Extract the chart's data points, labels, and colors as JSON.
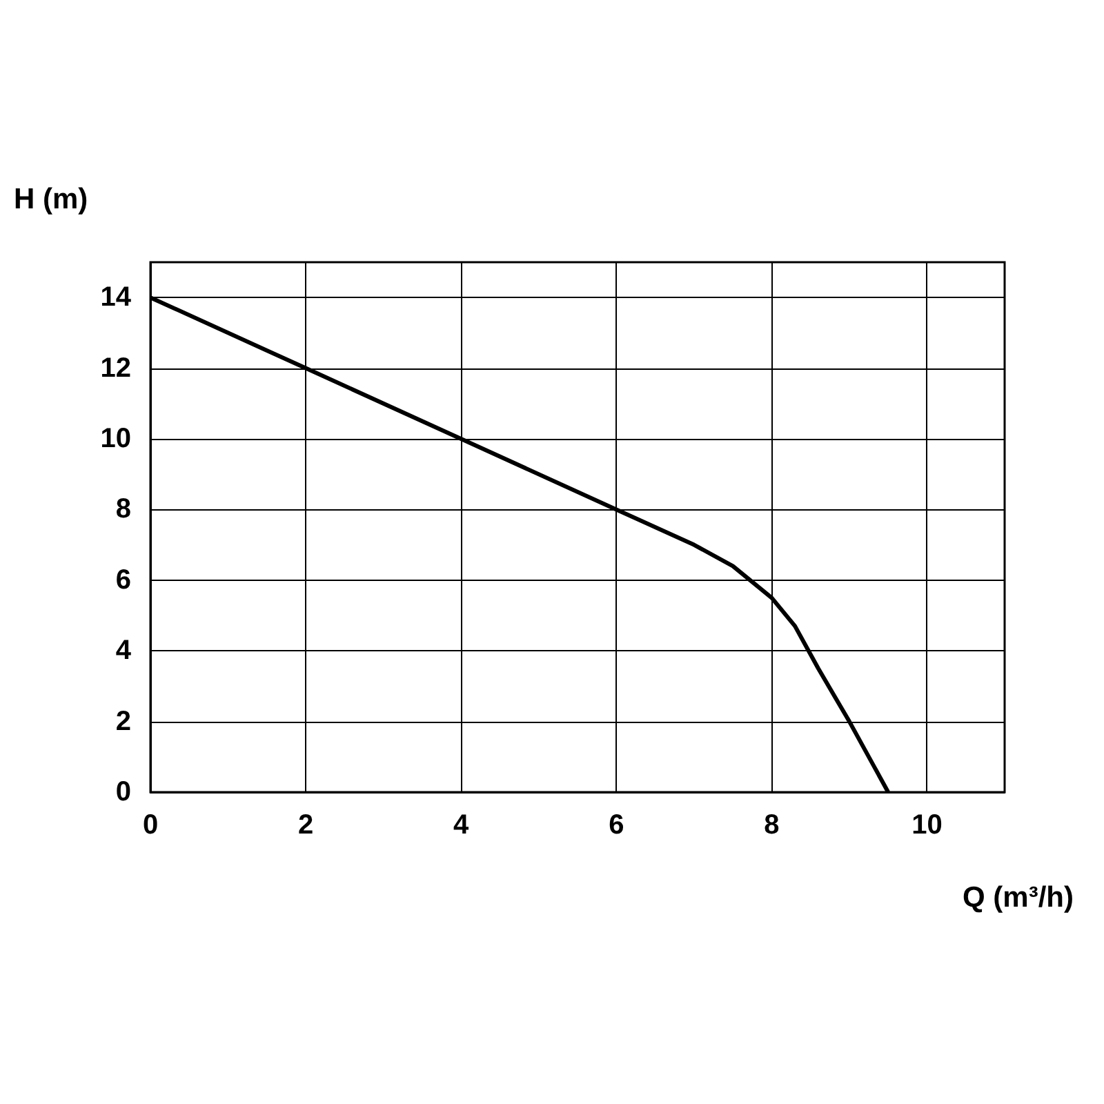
{
  "chart_data": {
    "type": "line",
    "xlabel": "Q (m³/h)",
    "ylabel": "H (m)",
    "xlim": [
      0,
      11
    ],
    "xticks": [
      0,
      2,
      4,
      6,
      8,
      10
    ],
    "ylim": [
      0,
      15
    ],
    "yticks": [
      0,
      2,
      4,
      6,
      8,
      10,
      12,
      14
    ],
    "grid": true,
    "marker": "none",
    "line_style": "solid",
    "series": [
      {
        "color": "#000000",
        "x": [
          0,
          2,
          4,
          6,
          6.5,
          7,
          7.5,
          8,
          8.3,
          8.6,
          9,
          9.5
        ],
        "values": [
          14,
          12,
          10,
          8,
          7.5,
          7,
          6.4,
          5.5,
          4.7,
          3.5,
          2,
          0
        ]
      }
    ]
  }
}
